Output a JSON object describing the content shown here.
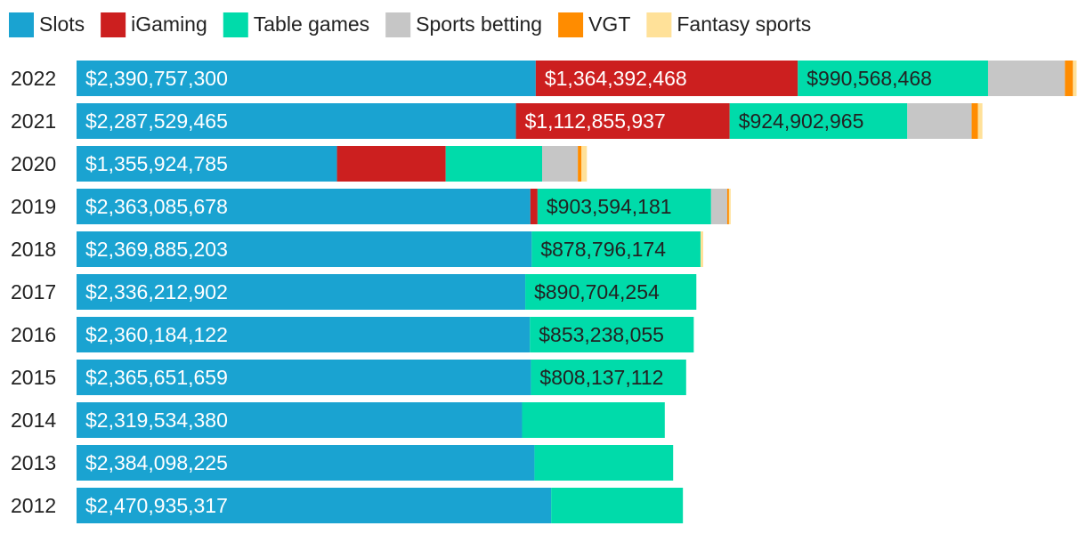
{
  "chart_data": {
    "type": "bar",
    "orientation": "horizontal",
    "stacked": true,
    "title": "",
    "legend_position": "top",
    "grid": false,
    "categories": [
      "2022",
      "2021",
      "2020",
      "2019",
      "2018",
      "2017",
      "2016",
      "2015",
      "2014",
      "2013",
      "2012"
    ],
    "series": [
      {
        "name": "Slots",
        "color": "#1aa3d1",
        "values": [
          2390757300,
          2287529465,
          1355924785,
          2363085678,
          2369885203,
          2336212902,
          2360184122,
          2365651659,
          2319534380,
          2384098225,
          2470935317
        ],
        "labels": [
          "$2,390,757,300",
          "$2,287,529,465",
          "$1,355,924,785",
          "$2,363,085,678",
          "$2,369,885,203",
          "$2,336,212,902",
          "$2,360,184,122",
          "$2,365,651,659",
          "$2,319,534,380",
          "$2,384,098,225",
          "$2,470,935,317"
        ]
      },
      {
        "name": "iGaming",
        "color": "#cc1f1f",
        "values": [
          1364392468,
          1112855937,
          566000000,
          37000000,
          0,
          0,
          0,
          0,
          0,
          0,
          0
        ],
        "labels": [
          "$1,364,392,468",
          "$1,112,855,937",
          "",
          "",
          "",
          "",
          "",
          "",
          "",
          "",
          ""
        ]
      },
      {
        "name": "Table games",
        "color": "#00dbaa",
        "values": [
          990568468,
          924902965,
          502000000,
          903594181,
          878796174,
          890704254,
          853238055,
          808137112,
          743000000,
          722000000,
          686000000
        ],
        "labels": [
          "$990,568,468",
          "$924,902,965",
          "",
          "$903,594,181",
          "$878,796,174",
          "$890,704,254",
          "$853,238,055",
          "$808,137,112",
          "",
          "",
          ""
        ]
      },
      {
        "name": "Sports betting",
        "color": "#c6c6c6",
        "values": [
          400000000,
          335000000,
          186000000,
          84000000,
          0,
          0,
          0,
          0,
          0,
          0,
          0
        ],
        "labels": [
          "",
          "",
          "",
          "",
          "",
          "",
          "",
          "",
          "",
          "",
          ""
        ]
      },
      {
        "name": "VGT",
        "color": "#ff8c00",
        "values": [
          42000000,
          33000000,
          19000000,
          9000000,
          0,
          0,
          0,
          0,
          0,
          0,
          0
        ],
        "labels": [
          "",
          "",
          "",
          "",
          "",
          "",
          "",
          "",
          "",
          "",
          ""
        ]
      },
      {
        "name": "Fantasy sports",
        "color": "#ffe199",
        "values": [
          19000000,
          23000000,
          28000000,
          9000000,
          14000000,
          0,
          0,
          0,
          0,
          0,
          0
        ],
        "labels": [
          "",
          "",
          "",
          "",
          "",
          "",
          "",
          "",
          "",
          "",
          ""
        ]
      }
    ],
    "xlim": [
      0,
      5200000000
    ]
  }
}
